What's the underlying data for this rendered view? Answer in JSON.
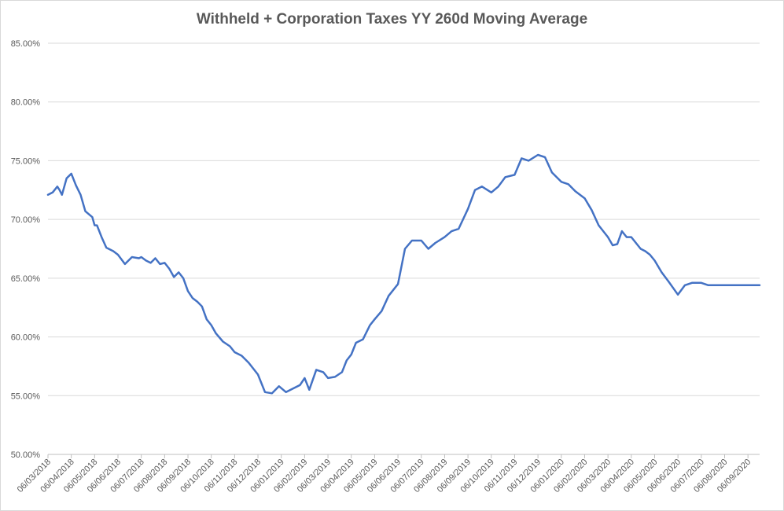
{
  "chart_data": {
    "type": "line",
    "title": "Withheld  + Corporation Taxes YY 260d Moving Average",
    "xlabel": "",
    "ylabel": "",
    "ylim": [
      0.5,
      0.85
    ],
    "yticks": [
      0.5,
      0.55,
      0.6,
      0.65,
      0.7,
      0.75,
      0.8,
      0.85
    ],
    "ytick_labels": [
      "50.00%",
      "55.00%",
      "60.00%",
      "65.00%",
      "70.00%",
      "75.00%",
      "80.00%",
      "85.00%"
    ],
    "xtick_labels": [
      "06/03/2018",
      "06/04/2018",
      "06/05/2018",
      "06/06/2018",
      "06/07/2018",
      "06/08/2018",
      "06/09/2018",
      "06/10/2018",
      "06/11/2018",
      "06/12/2018",
      "06/01/2019",
      "06/02/2019",
      "06/03/2019",
      "06/04/2019",
      "06/05/2019",
      "06/06/2019",
      "06/07/2019",
      "06/08/2019",
      "06/09/2019",
      "06/10/2019",
      "06/11/2019",
      "06/12/2019",
      "06/01/2020",
      "06/02/2020",
      "06/03/2020",
      "06/04/2020",
      "06/05/2020",
      "06/06/2020",
      "06/07/2020",
      "06/08/2020",
      "06/09/2020"
    ],
    "grid": true,
    "legend": "none",
    "line_color": "#4472c4",
    "series": [
      {
        "x": [
          0.0,
          0.2,
          0.4,
          0.5,
          0.6,
          0.8,
          1.0,
          1.2,
          1.4,
          1.6,
          1.9,
          2.0,
          2.1,
          2.3,
          2.5,
          2.8,
          3.0,
          3.3,
          3.6,
          3.9,
          4.0,
          4.2,
          4.4,
          4.6,
          4.8,
          5.0,
          5.2,
          5.4,
          5.6,
          5.8,
          6.0,
          6.2,
          6.4,
          6.6,
          6.8,
          7.0,
          7.2,
          7.5,
          7.8,
          8.0,
          8.3,
          8.6,
          9.0,
          9.3,
          9.6,
          9.9,
          10.2,
          10.5,
          10.8,
          11.0,
          11.2,
          11.5,
          11.8,
          12.0,
          12.3,
          12.6,
          12.8,
          13.0,
          13.2,
          13.5,
          13.8,
          14.0,
          14.3,
          14.6,
          15.0,
          15.3,
          15.6,
          16.0,
          16.3,
          16.6,
          17.0,
          17.3,
          17.6,
          18.0,
          18.3,
          18.6,
          19.0,
          19.3,
          19.6,
          20.0,
          20.3,
          20.6,
          21.0,
          21.3,
          21.6,
          22.0,
          22.3,
          22.6,
          23.0,
          23.3,
          23.6,
          24.0,
          24.2,
          24.4,
          24.6,
          24.8,
          25.0,
          25.2,
          25.4,
          25.6,
          25.8,
          26.0,
          26.3,
          26.6,
          27.0,
          27.3,
          27.6,
          28.0,
          28.3,
          28.6,
          29.0,
          29.3,
          29.6,
          29.8,
          30.0,
          30.2,
          30.5
        ],
        "values": [
          72.1,
          72.3,
          72.8,
          72.5,
          72.1,
          73.5,
          73.9,
          72.9,
          72.1,
          70.7,
          70.2,
          69.5,
          69.5,
          68.5,
          67.6,
          67.3,
          67.0,
          66.2,
          66.8,
          66.7,
          66.8,
          66.5,
          66.3,
          66.7,
          66.2,
          66.3,
          65.8,
          65.1,
          65.5,
          65.0,
          63.9,
          63.3,
          63.0,
          62.6,
          61.5,
          61.0,
          60.3,
          59.6,
          59.2,
          58.7,
          58.4,
          57.8,
          56.8,
          55.3,
          55.2,
          55.8,
          55.3,
          55.6,
          55.9,
          56.5,
          55.5,
          57.2,
          57.0,
          56.5,
          56.6,
          57.0,
          58.0,
          58.5,
          59.5,
          59.8,
          61.0,
          61.5,
          62.2,
          63.5,
          64.5,
          67.5,
          68.2,
          68.2,
          67.5,
          68.0,
          68.5,
          69.0,
          69.2,
          70.9,
          72.5,
          72.8,
          72.3,
          72.8,
          73.6,
          73.8,
          75.2,
          75.0,
          75.5,
          75.3,
          74.0,
          73.2,
          73.0,
          72.4,
          71.8,
          70.8,
          69.5,
          68.5,
          67.8,
          67.9,
          69.0,
          68.5,
          68.5,
          68.0,
          67.5,
          67.3,
          67.0,
          66.5,
          65.5,
          64.7,
          63.6,
          64.4,
          64.6,
          64.6,
          64.4,
          64.4,
          64.4,
          64.4,
          64.4,
          64.4,
          64.4,
          64.4,
          64.4
        ]
      }
    ]
  }
}
